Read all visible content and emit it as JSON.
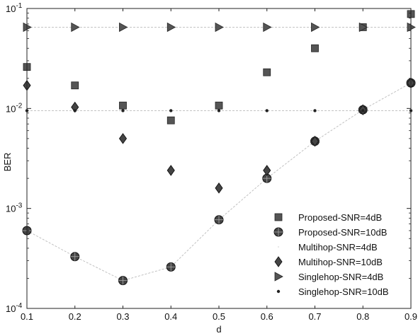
{
  "chart_data": {
    "type": "scatter",
    "xlabel": "d",
    "ylabel": "BER",
    "xlim": [
      0.1,
      0.9
    ],
    "ylim": [
      0.0001,
      0.1
    ],
    "yscale": "log",
    "xticks": [
      "0.1",
      "0.2",
      "0.3",
      "0.4",
      "0.5",
      "0.6",
      "0.7",
      "0.8",
      "0.9"
    ],
    "yticks": [
      {
        "value": 0.1,
        "base": "10",
        "exp": "-1"
      },
      {
        "value": 0.01,
        "base": "10",
        "exp": "-2"
      },
      {
        "value": 0.001,
        "base": "10",
        "exp": "-3"
      },
      {
        "value": 0.0001,
        "base": "10",
        "exp": "-4"
      }
    ],
    "grid": false,
    "legend_position": "bottom-right",
    "x": [
      0.1,
      0.2,
      0.3,
      0.4,
      0.5,
      0.6,
      0.7,
      0.8,
      0.9
    ],
    "series": [
      {
        "name": "Proposed-SNR=4dB",
        "marker": "square",
        "color": "#555555",
        "line": false,
        "values": [
          0.026,
          0.017,
          0.0107,
          0.0076,
          0.0107,
          0.023,
          0.04,
          0.065,
          0.088
        ]
      },
      {
        "name": "Proposed-SNR=10dB",
        "marker": "circle",
        "color": "#444444",
        "line": true,
        "values": [
          0.0006,
          0.00033,
          0.00019,
          0.00026,
          0.00077,
          0.002,
          0.0047,
          0.0097,
          0.018
        ]
      },
      {
        "name": "Multihop-SNR=4dB",
        "marker": "dot-faint",
        "color": "#cccccc",
        "line": true,
        "values": [
          0.065,
          0.065,
          0.065,
          0.065,
          0.065,
          0.065,
          0.065,
          0.065,
          0.065
        ]
      },
      {
        "name": "Multihop-SNR=10dB",
        "marker": "diamond",
        "color": "#444444",
        "line": false,
        "values": [
          0.017,
          0.0103,
          0.005,
          0.0024,
          0.0016,
          0.0024,
          0.0047,
          0.0097,
          0.018
        ]
      },
      {
        "name": "Singlehop-SNR=4dB",
        "marker": "triangle-right",
        "color": "#555555",
        "line": false,
        "values": [
          0.065,
          0.065,
          0.065,
          0.065,
          0.065,
          0.065,
          0.065,
          0.065,
          0.065
        ]
      },
      {
        "name": "Singlehop-SNR=10dB",
        "marker": "dot",
        "color": "#222222",
        "line": true,
        "values": [
          0.0095,
          0.0095,
          0.0095,
          0.0095,
          0.0095,
          0.0095,
          0.0095,
          0.0095,
          0.0095
        ]
      }
    ]
  }
}
